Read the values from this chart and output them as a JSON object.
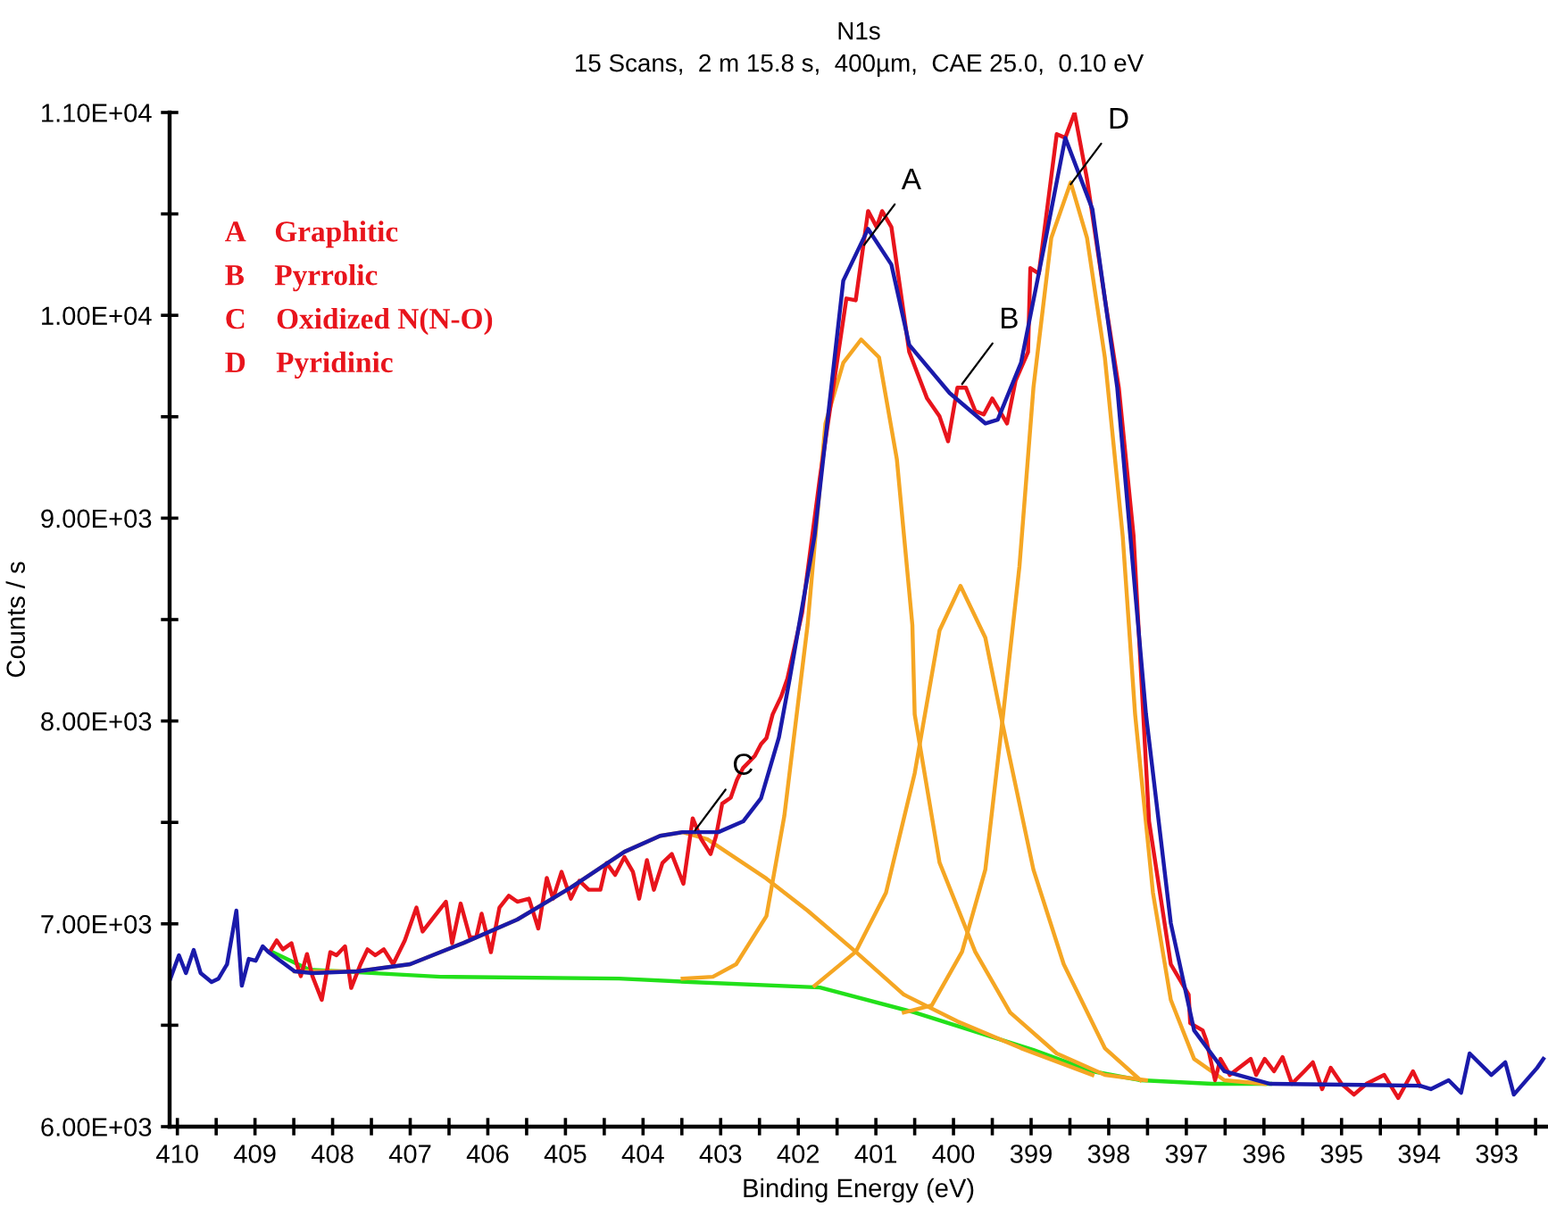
{
  "chart_data": {
    "type": "line",
    "title": "N1s",
    "subtitle": "15 Scans,  2 m 15.8 s,  400µm,  CAE 25.0,  0.10 eV",
    "xlabel": "Binding Energy (eV)",
    "ylabel": "Counts / s",
    "xlim": [
      410.1,
      392.35
    ],
    "ylim": [
      6000,
      11000
    ],
    "xticks": [
      410,
      {
        "value": 409.5,
        "label": null
      },
      409,
      {
        "value": 408.5,
        "label": null
      },
      408,
      {
        "value": 407.5,
        "label": null
      },
      407,
      {
        "value": 406.5,
        "label": null
      },
      406,
      {
        "value": 405.5,
        "label": null
      },
      405,
      {
        "value": 404.5,
        "label": null
      },
      404,
      {
        "value": 403.5,
        "label": null
      },
      403,
      {
        "value": 402.5,
        "label": null
      },
      402,
      {
        "value": 401.5,
        "label": null
      },
      401,
      {
        "value": 400.5,
        "label": null
      },
      400,
      {
        "value": 399.5,
        "label": null
      },
      399,
      {
        "value": 398.5,
        "label": null
      },
      398,
      {
        "value": 397.5,
        "label": null
      },
      397,
      {
        "value": 396.5,
        "label": null
      },
      396,
      {
        "value": 395.5,
        "label": null
      },
      395,
      {
        "value": 394.5,
        "label": null
      },
      394,
      {
        "value": 393.5,
        "label": null
      },
      393,
      {
        "value": 392.5,
        "label": null
      }
    ],
    "yticks": [
      {
        "value": 6000,
        "label": "6.00E+03"
      },
      {
        "value": 6500,
        "label": null
      },
      {
        "value": 7000,
        "label": "7.00E+03"
      },
      {
        "value": 7500,
        "label": null
      },
      {
        "value": 8000,
        "label": "8.00E+03"
      },
      {
        "value": 8500,
        "label": null
      },
      {
        "value": 9000,
        "label": "9.00E+03"
      },
      {
        "value": 9500,
        "label": null
      },
      {
        "value": 10000,
        "label": "1.00E+04"
      },
      {
        "value": 10500,
        "label": null
      },
      {
        "value": 11000,
        "label": "1.10E+04"
      }
    ],
    "grid": false,
    "legend": false,
    "marker": "none",
    "line_style": "solid",
    "series": [
      {
        "color": "#22e01a",
        "x": [
          408.78,
          408.3,
          406.61,
          404.31,
          403.39,
          401.72,
          400.5,
          398.97,
          398.21,
          397.59,
          396.67,
          395.92
        ],
        "values": [
          6862,
          6774,
          6739,
          6730,
          6713,
          6686,
          6563,
          6378,
          6273,
          6229,
          6211,
          6211
        ]
      },
      {
        "color": "#f5a623",
        "x": [
          408.49,
          407.68,
          407.0,
          406.31,
          405.62,
          404.93,
          404.24,
          403.78,
          403.49,
          403.17,
          402.41,
          401.88,
          401.26,
          400.64,
          399.95,
          399.13,
          398.21
        ],
        "values": [
          6766,
          6766,
          6801,
          6906,
          7021,
          7179,
          7355,
          7434,
          7452,
          7417,
          7223,
          7065,
          6862,
          6651,
          6519,
          6387,
          6255
        ]
      },
      {
        "color": "#f5a623",
        "x": [
          403.49,
          403.1,
          402.8,
          402.41,
          402.18,
          401.88,
          401.65,
          401.42,
          401.19,
          400.96,
          400.73,
          400.53,
          400.5,
          400.18,
          399.72,
          399.27,
          398.67,
          398.05,
          397.52
        ],
        "values": [
          6730,
          6739,
          6801,
          7038,
          7531,
          8473,
          9467,
          9766,
          9881,
          9793,
          9291,
          8473,
          8033,
          7302,
          6862,
          6563,
          6361,
          6255,
          6229
        ]
      },
      {
        "color": "#f5a623",
        "x": [
          401.79,
          401.26,
          400.87,
          400.5,
          400.18,
          399.91,
          399.59,
          399.36,
          398.97,
          398.58,
          398.05,
          397.59
        ],
        "values": [
          6695,
          6862,
          7153,
          7742,
          8446,
          8666,
          8411,
          7971,
          7267,
          6801,
          6387,
          6229
        ]
      },
      {
        "color": "#f5a623",
        "x": [
          400.64,
          400.28,
          399.89,
          399.59,
          399.36,
          399.15,
          398.97,
          398.74,
          398.49,
          398.28,
          398.05,
          397.82,
          397.66,
          397.43,
          397.2,
          396.9,
          396.51,
          395.99
        ],
        "values": [
          6563,
          6598,
          6862,
          7267,
          8033,
          8763,
          9643,
          10382,
          10655,
          10382,
          9793,
          8913,
          8033,
          7153,
          6625,
          6334,
          6229,
          6211
        ]
      },
      {
        "color": "#e8141c",
        "x": [
          408.79,
          408.72,
          408.64,
          408.53,
          408.46,
          408.41,
          408.33,
          408.26,
          408.14,
          408.03,
          407.95,
          407.84,
          407.76,
          407.64,
          407.55,
          407.45,
          407.34,
          407.22,
          407.07,
          406.92,
          406.84,
          406.69,
          406.54,
          406.46,
          406.35,
          406.23,
          406.15,
          406.08,
          405.96,
          405.85,
          405.73,
          405.62,
          405.47,
          405.35,
          405.24,
          405.16,
          405.05,
          404.93,
          404.82,
          404.7,
          404.55,
          404.47,
          404.36,
          404.24,
          404.13,
          404.05,
          403.95,
          403.86,
          403.75,
          403.63,
          403.48,
          403.36,
          403.25,
          403.13,
          403.06,
          402.98,
          402.87,
          402.79,
          402.71,
          402.56,
          402.48,
          402.41,
          402.33,
          402.22,
          402.14,
          401.95,
          401.72,
          401.38,
          401.26,
          401.1,
          400.99,
          400.92,
          400.8,
          400.57,
          400.34,
          400.18,
          400.07,
          399.95,
          399.84,
          399.72,
          399.61,
          399.5,
          399.31,
          399.2,
          399.04,
          399.01,
          398.9,
          398.67,
          398.56,
          398.44,
          398.28,
          398.05,
          397.87,
          397.68,
          397.48,
          397.2,
          396.97,
          396.95,
          396.79,
          396.74,
          396.63,
          396.56,
          396.44,
          396.17,
          396.1,
          395.99,
          395.87,
          395.76,
          395.64,
          395.48,
          395.37,
          395.25,
          395.14,
          395.0,
          394.84,
          394.68,
          394.45,
          394.27,
          394.08,
          393.99
        ],
        "values": [
          6874,
          6918,
          6874,
          6904,
          6801,
          6742,
          6851,
          6742,
          6625,
          6860,
          6845,
          6889,
          6684,
          6801,
          6874,
          6845,
          6874,
          6801,
          6918,
          7080,
          6962,
          7036,
          7109,
          6904,
          7100,
          6933,
          6933,
          7050,
          6860,
          7080,
          7138,
          7109,
          7124,
          6977,
          7226,
          7124,
          7256,
          7124,
          7212,
          7168,
          7168,
          7300,
          7241,
          7329,
          7256,
          7124,
          7314,
          7168,
          7300,
          7344,
          7197,
          7520,
          7417,
          7344,
          7432,
          7593,
          7622,
          7710,
          7769,
          7828,
          7886,
          7916,
          8033,
          8121,
          8209,
          8534,
          9203,
          10083,
          10074,
          10514,
          10435,
          10514,
          10435,
          9819,
          9590,
          9502,
          9379,
          9643,
          9643,
          9529,
          9511,
          9590,
          9467,
          9678,
          9819,
          10233,
          10206,
          10893,
          10875,
          10998,
          10673,
          10083,
          9643,
          8913,
          7505,
          6801,
          6651,
          6510,
          6475,
          6422,
          6229,
          6334,
          6255,
          6334,
          6255,
          6334,
          6273,
          6343,
          6211,
          6273,
          6317,
          6185,
          6290,
          6211,
          6158,
          6211,
          6255,
          6141,
          6273,
          6202
        ]
      },
      {
        "color": "#1a1aaa",
        "x": [
          410.09,
          409.98,
          409.89,
          409.79,
          409.7,
          409.56,
          409.47,
          409.36,
          409.24,
          409.17,
          409.08,
          408.99,
          408.9,
          408.83,
          408.49,
          408.26,
          407.68,
          407.0,
          406.31,
          405.62,
          404.93,
          404.24,
          403.78,
          403.49,
          403.03,
          402.71,
          402.48,
          402.25,
          402.11,
          401.79,
          401.42,
          401.1,
          400.8,
          400.57,
          400.05,
          399.59,
          399.43,
          399.13,
          398.81,
          398.56,
          398.21,
          397.89,
          397.52,
          397.2,
          396.9,
          396.51,
          395.92,
          393.99,
          393.85,
          393.62,
          393.46,
          393.35,
          393.07,
          392.89,
          392.78,
          392.48,
          392.4
        ],
        "values": [
          6730,
          6845,
          6757,
          6871,
          6757,
          6713,
          6730,
          6801,
          7065,
          6695,
          6827,
          6818,
          6889,
          6862,
          6766,
          6757,
          6766,
          6801,
          6906,
          7021,
          7179,
          7355,
          7434,
          7452,
          7452,
          7505,
          7619,
          7918,
          8209,
          8913,
          10171,
          10426,
          10250,
          9854,
          9617,
          9467,
          9485,
          9766,
          10382,
          10875,
          10523,
          9643,
          8033,
          7003,
          6475,
          6273,
          6211,
          6202,
          6185,
          6229,
          6167,
          6361,
          6255,
          6317,
          6158,
          6290,
          6334
        ]
      }
    ],
    "annotations": [
      {
        "text": "A",
        "x": 401.15,
        "y": 10347
      },
      {
        "text": "B",
        "x": 399.89,
        "y": 9661
      },
      {
        "text": "C",
        "x": 403.33,
        "y": 7461
      },
      {
        "text": "D",
        "x": 398.49,
        "y": 10646
      },
      "A    Graphitic",
      "B    Pyrrolic",
      "C    Oxidized N(N-O)",
      "D    Pyridinic"
    ]
  }
}
